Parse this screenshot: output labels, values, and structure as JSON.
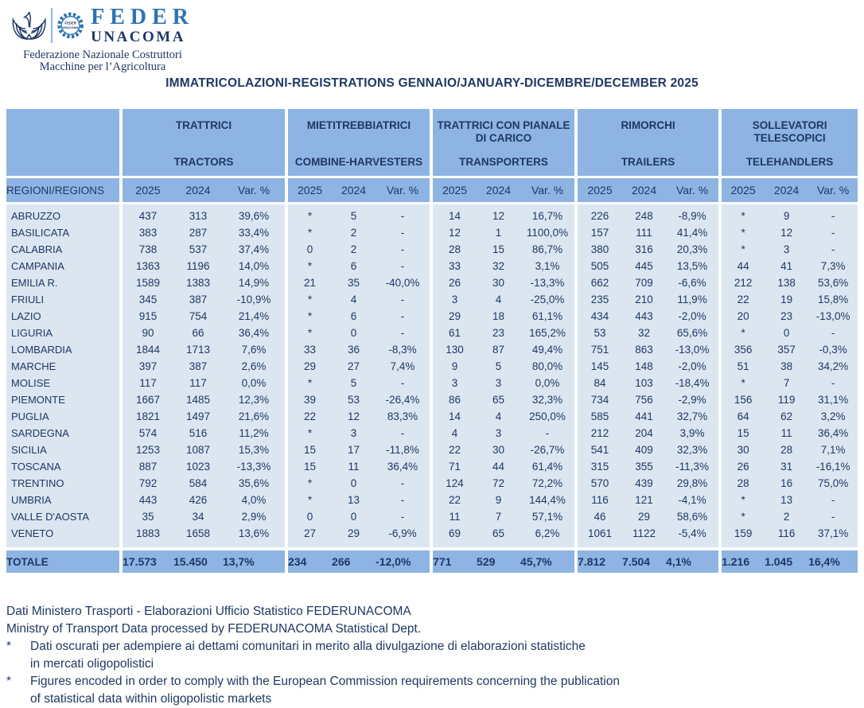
{
  "colors": {
    "ink": "#1f3864",
    "accent": "#2e74b5",
    "header_blue": "#8db4e2",
    "cell_blue": "#dce6f1"
  },
  "logo": {
    "feder": "FEDER",
    "unacoma": "UNACOMA",
    "emblem_line1": "FEDER",
    "emblem_line2": "UNACOMA",
    "subtitle_line1": "Federazione Nazionale Costruttori",
    "subtitle_line2": "Macchine per l’Agricoltura"
  },
  "title": "IMMATRICOLAZIONI-REGISTRATIONS GENNAIO/JANUARY-DICEMBRE/DECEMBER 2025",
  "table": {
    "region_header": "REGIONI/REGIONS",
    "groups": [
      {
        "it": "TRATTRICI",
        "en": "TRACTORS"
      },
      {
        "it": "MIETITREBBIATRICI",
        "en": "COMBINE-HARVESTERS"
      },
      {
        "it": "TRATTRICI CON PIANALE DI CARICO",
        "en": "TRANSPORTERS"
      },
      {
        "it": "RIMORCHI",
        "en": "TRAILERS"
      },
      {
        "it": "SOLLEVATORI TELESCOPICI",
        "en": "TELEHANDLERS"
      }
    ],
    "year_cols": [
      "2025",
      "2024",
      "Var. %"
    ],
    "rows": [
      {
        "region": "ABRUZZO",
        "values": [
          "437",
          "313",
          "39,6%",
          "*",
          "5",
          "-",
          "14",
          "12",
          "16,7%",
          "226",
          "248",
          "-8,9%",
          "*",
          "9",
          "-"
        ]
      },
      {
        "region": "BASILICATA",
        "values": [
          "383",
          "287",
          "33,4%",
          "*",
          "2",
          "-",
          "12",
          "1",
          "1100,0%",
          "157",
          "111",
          "41,4%",
          "*",
          "12",
          "-"
        ]
      },
      {
        "region": "CALABRIA",
        "values": [
          "738",
          "537",
          "37,4%",
          "0",
          "2",
          "-",
          "28",
          "15",
          "86,7%",
          "380",
          "316",
          "20,3%",
          "*",
          "3",
          "-"
        ]
      },
      {
        "region": "CAMPANIA",
        "values": [
          "1363",
          "1196",
          "14,0%",
          "*",
          "6",
          "-",
          "33",
          "32",
          "3,1%",
          "505",
          "445",
          "13,5%",
          "44",
          "41",
          "7,3%"
        ]
      },
      {
        "region": "EMILIA R.",
        "values": [
          "1589",
          "1383",
          "14,9%",
          "21",
          "35",
          "-40,0%",
          "26",
          "30",
          "-13,3%",
          "662",
          "709",
          "-6,6%",
          "212",
          "138",
          "53,6%"
        ]
      },
      {
        "region": "FRIULI",
        "values": [
          "345",
          "387",
          "-10,9%",
          "*",
          "4",
          "-",
          "3",
          "4",
          "-25,0%",
          "235",
          "210",
          "11,9%",
          "22",
          "19",
          "15,8%"
        ]
      },
      {
        "region": "LAZIO",
        "values": [
          "915",
          "754",
          "21,4%",
          "*",
          "6",
          "-",
          "29",
          "18",
          "61,1%",
          "434",
          "443",
          "-2,0%",
          "20",
          "23",
          "-13,0%"
        ]
      },
      {
        "region": "LIGURIA",
        "values": [
          "90",
          "66",
          "36,4%",
          "*",
          "0",
          "-",
          "61",
          "23",
          "165,2%",
          "53",
          "32",
          "65,6%",
          "*",
          "0",
          "-"
        ]
      },
      {
        "region": "LOMBARDIA",
        "values": [
          "1844",
          "1713",
          "7,6%",
          "33",
          "36",
          "-8,3%",
          "130",
          "87",
          "49,4%",
          "751",
          "863",
          "-13,0%",
          "356",
          "357",
          "-0,3%"
        ]
      },
      {
        "region": "MARCHE",
        "values": [
          "397",
          "387",
          "2,6%",
          "29",
          "27",
          "7,4%",
          "9",
          "5",
          "80,0%",
          "145",
          "148",
          "-2,0%",
          "51",
          "38",
          "34,2%"
        ]
      },
      {
        "region": "MOLISE",
        "values": [
          "117",
          "117",
          "0,0%",
          "*",
          "5",
          "-",
          "3",
          "3",
          "0,0%",
          "84",
          "103",
          "-18,4%",
          "*",
          "7",
          "-"
        ]
      },
      {
        "region": "PIEMONTE",
        "values": [
          "1667",
          "1485",
          "12,3%",
          "39",
          "53",
          "-26,4%",
          "86",
          "65",
          "32,3%",
          "734",
          "756",
          "-2,9%",
          "156",
          "119",
          "31,1%"
        ]
      },
      {
        "region": "PUGLIA",
        "values": [
          "1821",
          "1497",
          "21,6%",
          "22",
          "12",
          "83,3%",
          "14",
          "4",
          "250,0%",
          "585",
          "441",
          "32,7%",
          "64",
          "62",
          "3,2%"
        ]
      },
      {
        "region": "SARDEGNA",
        "values": [
          "574",
          "516",
          "11,2%",
          "*",
          "3",
          "-",
          "4",
          "3",
          "-",
          "212",
          "204",
          "3,9%",
          "15",
          "11",
          "36,4%"
        ]
      },
      {
        "region": "SICILIA",
        "values": [
          "1253",
          "1087",
          "15,3%",
          "15",
          "17",
          "-11,8%",
          "22",
          "30",
          "-26,7%",
          "541",
          "409",
          "32,3%",
          "30",
          "28",
          "7,1%"
        ]
      },
      {
        "region": "TOSCANA",
        "values": [
          "887",
          "1023",
          "-13,3%",
          "15",
          "11",
          "36,4%",
          "71",
          "44",
          "61,4%",
          "315",
          "355",
          "-11,3%",
          "26",
          "31",
          "-16,1%"
        ]
      },
      {
        "region": "TRENTINO",
        "values": [
          "792",
          "584",
          "35,6%",
          "*",
          "0",
          "-",
          "124",
          "72",
          "72,2%",
          "570",
          "439",
          "29,8%",
          "28",
          "16",
          "75,0%"
        ]
      },
      {
        "region": "UMBRIA",
        "values": [
          "443",
          "426",
          "4,0%",
          "*",
          "13",
          "-",
          "22",
          "9",
          "144,4%",
          "116",
          "121",
          "-4,1%",
          "*",
          "13",
          "-"
        ]
      },
      {
        "region": "VALLE D'AOSTA",
        "values": [
          "35",
          "34",
          "2,9%",
          "0",
          "0",
          "-",
          "11",
          "7",
          "57,1%",
          "46",
          "29",
          "58,6%",
          "*",
          "2",
          "-"
        ]
      },
      {
        "region": "VENETO",
        "values": [
          "1883",
          "1658",
          "13,6%",
          "27",
          "29",
          "-6,9%",
          "69",
          "65",
          "6,2%",
          "1061",
          "1122",
          "-5,4%",
          "159",
          "116",
          "37,1%"
        ]
      }
    ],
    "total": {
      "label": "TOTALE",
      "values": [
        "17.573",
        "15.450",
        "13,7%",
        "234",
        "266",
        "-12,0%",
        "771",
        "529",
        "45,7%",
        "7.812",
        "7.504",
        "4,1%",
        "1.216",
        "1.045",
        "16,4%"
      ]
    }
  },
  "footer": {
    "source_it": "Dati Ministero Trasporti - Elaborazioni Ufficio Statistico FEDERUNACOMA",
    "source_en": "Ministry of Transport Data processed by FEDERUNACOMA Statistical Dept.",
    "notes": [
      {
        "marker": "*",
        "lines": [
          "Dati oscurati per adempiere ai dettami comunitari in merito alla divulgazione di elaborazioni statistiche",
          "in mercati oligopolistici"
        ]
      },
      {
        "marker": "*",
        "lines": [
          "Figures encoded in order to comply with the European Commission requirements concerning the publication",
          "of statistical data within oligopolistic markets"
        ]
      }
    ]
  }
}
